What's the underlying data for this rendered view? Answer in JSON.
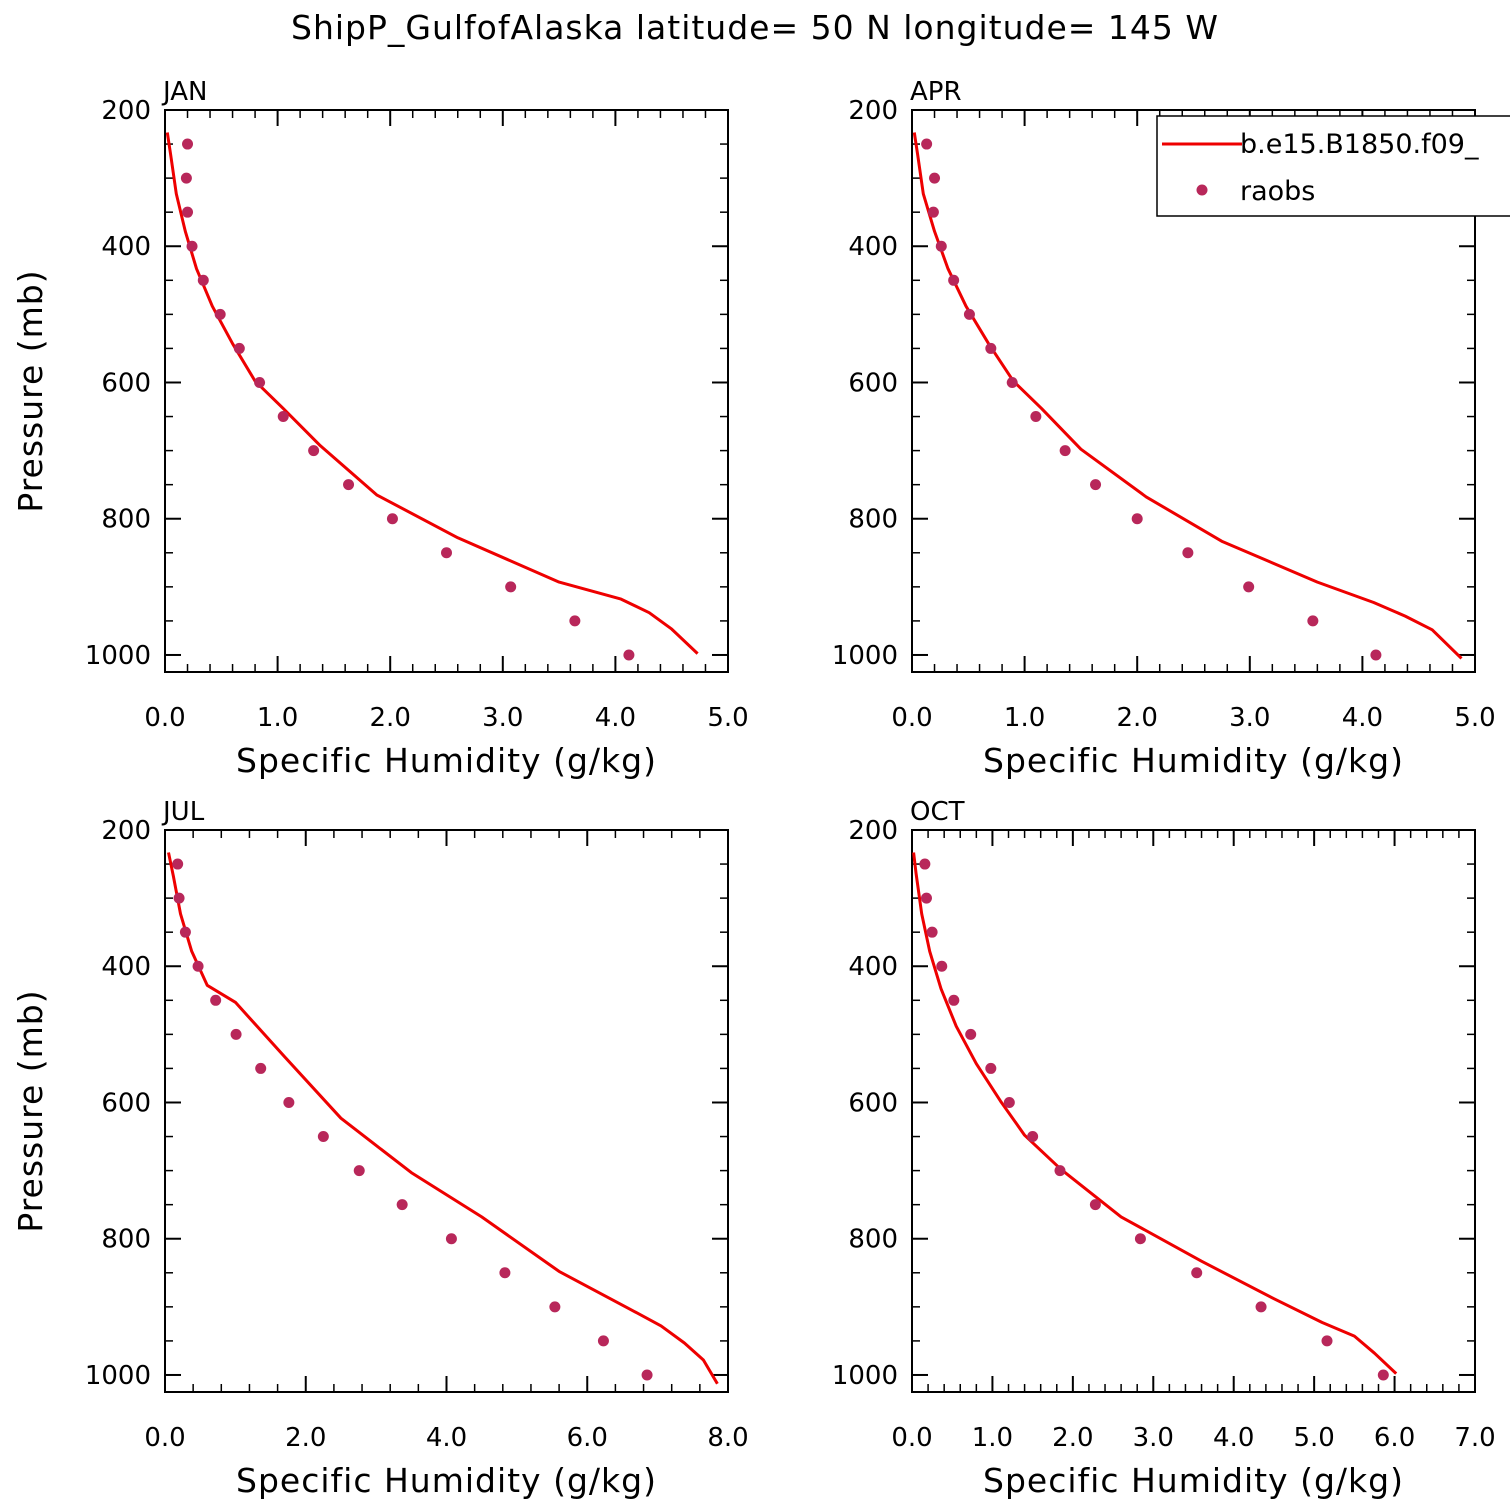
{
  "title": "ShipP_GulfofAlaska  latitude= 50 N longitude= 145 W",
  "legend": {
    "model_label": "b.e15.B1850.f09_",
    "obs_label": "raobs",
    "placement": "top-right of APR panel"
  },
  "colors": {
    "model_line": "#ee0000",
    "obs_points": "#b8275a",
    "axis": "#000000"
  },
  "chart_data": [
    {
      "type": "line",
      "panel": "JAN",
      "xlabel": "Specific Humidity (g/kg)",
      "ylabel": "Pressure (mb)",
      "xlim": [
        0,
        5
      ],
      "ylim": [
        200,
        1025
      ],
      "y_inverted": true,
      "xticks": [
        "0.0",
        "1.0",
        "2.0",
        "3.0",
        "4.0",
        "5.0"
      ],
      "xtick_values": [
        0,
        1,
        2,
        3,
        4,
        5
      ],
      "yticks": [
        200,
        400,
        600,
        800,
        1000
      ],
      "series": [
        {
          "name": "b.e15.B1850.f09_",
          "kind": "line",
          "x": [
            0.02,
            0.05,
            0.1,
            0.18,
            0.28,
            0.42,
            0.6,
            0.8,
            1.05,
            1.38,
            1.88,
            2.6,
            3.5,
            4.05,
            4.3,
            4.5,
            4.73
          ],
          "y": [
            233,
            265,
            323,
            378,
            433,
            488,
            543,
            598,
            638,
            693,
            765,
            828,
            893,
            918,
            938,
            962,
            998
          ]
        },
        {
          "name": "raobs",
          "kind": "scatter",
          "x": [
            0.2,
            0.19,
            0.2,
            0.24,
            0.34,
            0.49,
            0.66,
            0.84,
            1.05,
            1.32,
            1.63,
            2.02,
            2.5,
            3.07,
            3.64,
            4.12
          ],
          "y": [
            250,
            300,
            350,
            400,
            450,
            500,
            550,
            600,
            650,
            700,
            750,
            800,
            850,
            900,
            950,
            1000
          ]
        }
      ]
    },
    {
      "type": "line",
      "panel": "APR",
      "xlabel": "Specific Humidity (g/kg)",
      "ylabel": "",
      "xlim": [
        0,
        5
      ],
      "ylim": [
        200,
        1025
      ],
      "y_inverted": true,
      "xticks": [
        "0.0",
        "1.0",
        "2.0",
        "3.0",
        "4.0",
        "5.0"
      ],
      "xtick_values": [
        0,
        1,
        2,
        3,
        4,
        5
      ],
      "yticks": [
        200,
        400,
        600,
        800,
        1000
      ],
      "series": [
        {
          "name": "b.e15.B1850.f09_",
          "kind": "line",
          "x": [
            0.02,
            0.05,
            0.1,
            0.2,
            0.32,
            0.48,
            0.68,
            0.9,
            1.15,
            1.5,
            2.08,
            2.75,
            3.6,
            4.1,
            4.38,
            4.62,
            4.88
          ],
          "y": [
            233,
            265,
            323,
            378,
            433,
            488,
            543,
            598,
            638,
            698,
            768,
            833,
            893,
            923,
            943,
            963,
            1005
          ]
        },
        {
          "name": "raobs",
          "kind": "scatter",
          "x": [
            0.13,
            0.2,
            0.19,
            0.26,
            0.37,
            0.51,
            0.7,
            0.89,
            1.1,
            1.36,
            1.63,
            2.0,
            2.45,
            2.99,
            3.56,
            4.12
          ],
          "y": [
            250,
            300,
            350,
            400,
            450,
            500,
            550,
            600,
            650,
            700,
            750,
            800,
            850,
            900,
            950,
            1000
          ]
        }
      ]
    },
    {
      "type": "line",
      "panel": "JUL",
      "xlabel": "Specific Humidity (g/kg)",
      "ylabel": "Pressure (mb)",
      "xlim": [
        0,
        8
      ],
      "ylim": [
        200,
        1025
      ],
      "y_inverted": true,
      "xticks": [
        "0.0",
        "2.0",
        "4.0",
        "6.0",
        "8.0"
      ],
      "xtick_values": [
        0,
        2,
        4,
        6,
        8
      ],
      "yticks": [
        200,
        400,
        600,
        800,
        1000
      ],
      "series": [
        {
          "name": "b.e15.B1850.f09_",
          "kind": "line",
          "x": [
            0.05,
            0.12,
            0.22,
            0.38,
            0.6,
            1.0,
            1.7,
            2.5,
            3.5,
            4.5,
            5.6,
            6.6,
            7.05,
            7.38,
            7.65,
            7.85
          ],
          "y": [
            233,
            268,
            323,
            378,
            428,
            453,
            533,
            623,
            703,
            768,
            848,
            903,
            928,
            953,
            978,
            1013
          ]
        },
        {
          "name": "raobs",
          "kind": "scatter",
          "x": [
            0.18,
            0.2,
            0.29,
            0.47,
            0.72,
            1.01,
            1.36,
            1.76,
            2.25,
            2.76,
            3.37,
            4.07,
            4.83,
            5.54,
            6.23,
            6.85
          ],
          "y": [
            250,
            300,
            350,
            400,
            450,
            500,
            550,
            600,
            650,
            700,
            750,
            800,
            850,
            900,
            950,
            1000
          ]
        }
      ]
    },
    {
      "type": "line",
      "panel": "OCT",
      "xlabel": "Specific Humidity (g/kg)",
      "ylabel": "",
      "xlim": [
        0,
        7
      ],
      "ylim": [
        200,
        1025
      ],
      "y_inverted": true,
      "xticks": [
        "0.0",
        "1.0",
        "2.0",
        "3.0",
        "4.0",
        "5.0",
        "6.0",
        "7.0"
      ],
      "xtick_values": [
        0,
        1,
        2,
        3,
        4,
        5,
        6,
        7
      ],
      "yticks": [
        200,
        400,
        600,
        800,
        1000
      ],
      "series": [
        {
          "name": "b.e15.B1850.f09_",
          "kind": "line",
          "x": [
            0.02,
            0.05,
            0.12,
            0.22,
            0.36,
            0.55,
            0.8,
            1.1,
            1.4,
            1.85,
            2.6,
            3.6,
            4.5,
            5.1,
            5.5,
            5.75,
            6.02
          ],
          "y": [
            233,
            263,
            323,
            378,
            433,
            488,
            543,
            598,
            648,
            698,
            768,
            833,
            888,
            923,
            943,
            968,
            998
          ]
        },
        {
          "name": "raobs",
          "kind": "scatter",
          "x": [
            0.16,
            0.18,
            0.25,
            0.37,
            0.52,
            0.73,
            0.98,
            1.21,
            1.5,
            1.84,
            2.28,
            2.84,
            3.54,
            4.34,
            5.16,
            5.86
          ],
          "y": [
            250,
            300,
            350,
            400,
            450,
            500,
            550,
            600,
            650,
            700,
            750,
            800,
            850,
            900,
            950,
            1000
          ]
        }
      ]
    }
  ]
}
